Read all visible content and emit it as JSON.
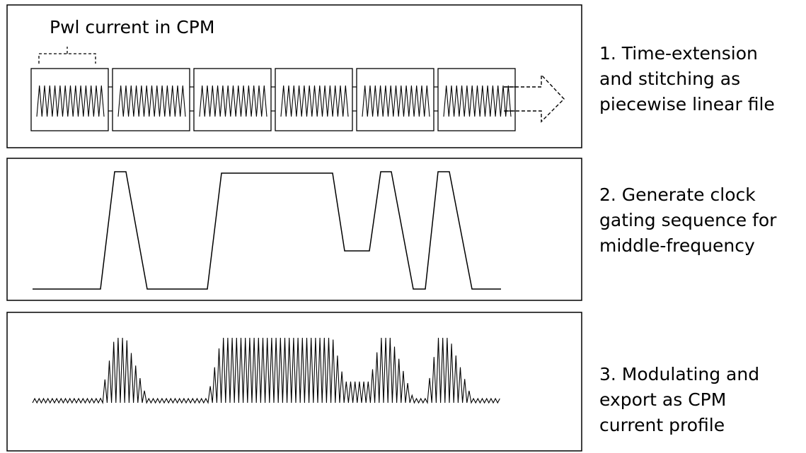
{
  "panel1": {
    "title": "Pwl current in CPM",
    "segment_count": 6
  },
  "steps": [
    {
      "lines": [
        "1. Time-extension",
        "and stitching as",
        "piecewise linear file"
      ]
    },
    {
      "lines": [
        "2. Generate clock",
        "gating sequence for",
        "middle-frequency"
      ]
    },
    {
      "lines": [
        "3. Modulating and",
        "export as CPM",
        "current profile"
      ]
    }
  ],
  "gating_sequence": {
    "levels": [
      "low",
      "high",
      "low",
      "high",
      "mid",
      "high",
      "low",
      "high",
      "low"
    ]
  },
  "colors": {
    "stroke": "#000000",
    "background": "#ffffff"
  }
}
